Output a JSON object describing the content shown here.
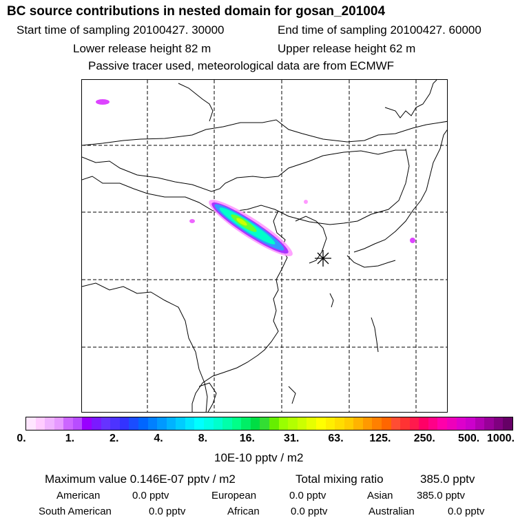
{
  "header": {
    "title": "BC  source contributions in nested domain for gosan_201004",
    "start_time": "Start time of sampling 20100427. 30000",
    "end_time": "End time of sampling 20100427. 60000",
    "lower_height": "Lower release height   82 m",
    "upper_height": "Upper release height   62 m",
    "tracer_note": "Passive tracer used, meteorological data are from ECMWF"
  },
  "map": {
    "receptor_marker": "star-marker",
    "plume_colors": [
      "#ff66ff",
      "#aa33ff",
      "#3366ff",
      "#00ccff",
      "#00ffcc",
      "#33ff66",
      "#ccff00"
    ],
    "coast_color": "#000000",
    "grid_color": "#000000"
  },
  "colorbar": {
    "tick_labels": [
      "0.",
      "1.",
      "2.",
      "4.",
      "8.",
      "16.",
      "31.",
      "63.",
      "125.",
      "250.",
      "500.",
      "1000."
    ],
    "units": "10E-10 pptv / m2",
    "colors": [
      "#ffe6ff",
      "#ffccff",
      "#f0b3ff",
      "#e699ff",
      "#cc66ff",
      "#b84dff",
      "#9900ff",
      "#7a1aff",
      "#6633ff",
      "#4d33ff",
      "#3333ff",
      "#1a4dff",
      "#0066ff",
      "#0080ff",
      "#0099ff",
      "#00b3ff",
      "#00ccff",
      "#00e6ff",
      "#00ffff",
      "#00ffe6",
      "#00ffcc",
      "#00ffaa",
      "#00ff88",
      "#00ee66",
      "#00dd44",
      "#33dd33",
      "#66ee00",
      "#99ff00",
      "#b3ff00",
      "#ccff00",
      "#e6ff00",
      "#ffff00",
      "#ffee00",
      "#ffdd00",
      "#ffcc00",
      "#ffb300",
      "#ff9900",
      "#ff8000",
      "#ff6600",
      "#ff4d33",
      "#ff3333",
      "#ff1a4d",
      "#ff0066",
      "#ff0088",
      "#ff00aa",
      "#ee00bb",
      "#dd00cc",
      "#cc00cc",
      "#b300b3",
      "#990099",
      "#800080",
      "#660066"
    ]
  },
  "stats": {
    "max_value": "Maximum value  0.146E-07 pptv / m2",
    "total_mixing": "Total mixing ratio",
    "total_value": "385.0 pptv",
    "american_label": "American",
    "american_value": "0.0 pptv",
    "european_label": "European",
    "european_value": "0.0 pptv",
    "asian_label": "Asian",
    "asian_value": "385.0 pptv",
    "south_american_label": "South American",
    "south_american_value": "0.0 pptv",
    "african_label": "African",
    "african_value": "0.0 pptv",
    "australian_label": "Australian",
    "australian_value": "0.0 pptv"
  }
}
